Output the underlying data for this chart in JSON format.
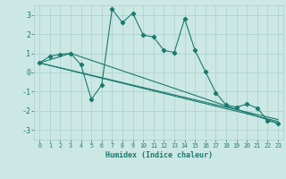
{
  "title": "",
  "xlabel": "Humidex (Indice chaleur)",
  "xlim": [
    -0.5,
    23.5
  ],
  "ylim": [
    -3.5,
    3.5
  ],
  "yticks": [
    -3,
    -2,
    -1,
    0,
    1,
    2,
    3
  ],
  "xticks": [
    0,
    1,
    2,
    3,
    4,
    5,
    6,
    7,
    8,
    9,
    10,
    11,
    12,
    13,
    14,
    15,
    16,
    17,
    18,
    19,
    20,
    21,
    22,
    23
  ],
  "bg_color": "#cce8e4",
  "grid_color": "#aacfcc",
  "line_color": "#1a7a6e",
  "line1_x": [
    0,
    1,
    2,
    3,
    4,
    5,
    6,
    7,
    8,
    9,
    10,
    11,
    12,
    13,
    14,
    15,
    16,
    17,
    18,
    19,
    20,
    21,
    22,
    23
  ],
  "line1_y": [
    0.5,
    0.85,
    0.95,
    1.0,
    0.4,
    -1.4,
    -0.65,
    3.3,
    2.6,
    3.1,
    1.95,
    1.85,
    1.15,
    1.05,
    2.8,
    1.15,
    0.05,
    -1.05,
    -1.7,
    -1.8,
    -1.65,
    -1.85,
    -2.5,
    -2.65
  ],
  "line2_x": [
    0,
    3,
    23
  ],
  "line2_y": [
    0.5,
    1.0,
    -2.65
  ],
  "line3_x": [
    0,
    23
  ],
  "line3_y": [
    0.5,
    -2.55
  ],
  "line4_x": [
    0,
    23
  ],
  "line4_y": [
    0.5,
    -2.45
  ]
}
